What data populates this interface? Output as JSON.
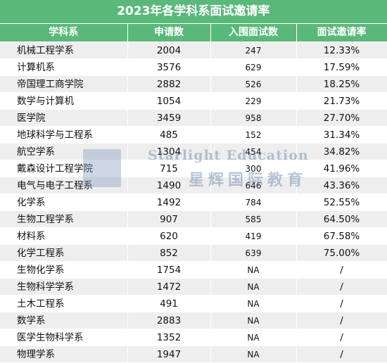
{
  "title": "2023年各学科系面试邀请率",
  "headers": [
    "学科系",
    "申请数",
    "入围面试数",
    "面试邀请率"
  ],
  "rows": [
    {
      "dept": "机械工程学系",
      "applications": "2004",
      "interviews": "247",
      "rate": "12.33%"
    },
    {
      "dept": "计算机系",
      "applications": "3576",
      "interviews": "629",
      "rate": "17.59%"
    },
    {
      "dept": "帝国理工商学院",
      "applications": "2882",
      "interviews": "526",
      "rate": "18.25%"
    },
    {
      "dept": "数学与计算机",
      "applications": "1054",
      "interviews": "229",
      "rate": "21.73%"
    },
    {
      "dept": "医学院",
      "applications": "3459",
      "interviews": "958",
      "rate": "27.70%"
    },
    {
      "dept": "地球科学与工程系",
      "applications": "485",
      "interviews": "152",
      "rate": "31.34%"
    },
    {
      "dept": "航空学系",
      "applications": "1304",
      "interviews": "454",
      "rate": "34.82%"
    },
    {
      "dept": "戴森设计工程学院",
      "applications": "715",
      "interviews": "300",
      "rate": "41.96%"
    },
    {
      "dept": "电气与电子工程系",
      "applications": "1490",
      "interviews": "646",
      "rate": "43.36%"
    },
    {
      "dept": "化学系",
      "applications": "1492",
      "interviews": "784",
      "rate": "52.55%"
    },
    {
      "dept": "生物工程学系",
      "applications": "907",
      "interviews": "585",
      "rate": "64.50%"
    },
    {
      "dept": "材料系",
      "applications": "620",
      "interviews": "419",
      "rate": "67.58%"
    },
    {
      "dept": "化学工程系",
      "applications": "852",
      "interviews": "639",
      "rate": "75.00%"
    },
    {
      "dept": "生物化学系",
      "applications": "1754",
      "interviews": "NA",
      "rate": "/"
    },
    {
      "dept": "生物科学学系",
      "applications": "1472",
      "interviews": "NA",
      "rate": "/"
    },
    {
      "dept": "土木工程系",
      "applications": "491",
      "interviews": "NA",
      "rate": "/"
    },
    {
      "dept": "数学系",
      "applications": "2883",
      "interviews": "NA",
      "rate": "/"
    },
    {
      "dept": "医学生物科学系",
      "applications": "1352",
      "interviews": "NA",
      "rate": "/"
    },
    {
      "dept": "物理学系",
      "applications": "1947",
      "interviews": "NA",
      "rate": "/"
    }
  ],
  "watermark": {
    "line1": "Starlight Education",
    "line2": "星辉国际教育"
  },
  "colors": {
    "header_bg": "#5ab87a",
    "header_text": "#ffffff",
    "stripe": "#eeeeee"
  }
}
